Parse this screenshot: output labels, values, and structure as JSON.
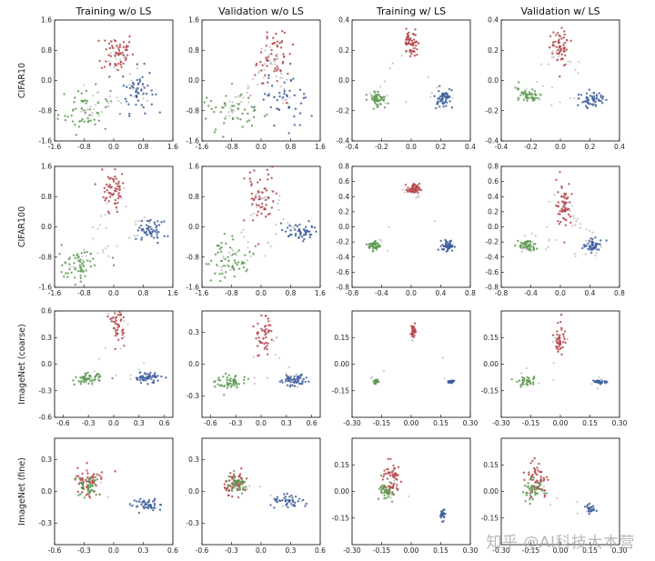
{
  "watermark": "知乎 @AI科技大本营",
  "colors": {
    "class_a": "#b5454a",
    "class_b": "#3c5e9c",
    "class_c": "#5e9a52",
    "noise": "#c9c9c9"
  },
  "chart_data": {
    "type": "scatter",
    "column_titles": [
      "Training w/o LS",
      "Validation w/o LS",
      "Training w/ LS",
      "Validation w/ LS"
    ],
    "row_labels": [
      "CIFAR10",
      "CIFAR100",
      "ImageNet (coarse)",
      "ImageNet (fine)"
    ],
    "grid": false,
    "series_colors": [
      "#b5454a",
      "#3c5e9c",
      "#5e9a52"
    ],
    "panels": [
      [
        {
          "xlim": [
            -1.6,
            1.6
          ],
          "ylim": [
            -1.6,
            1.6
          ],
          "xticks": [
            "-1.6",
            "-0.8",
            "0.0",
            "0.8",
            "1.6"
          ],
          "yticks": [
            "1.6",
            "0.8",
            "0.0",
            "-0.8",
            "-1.6"
          ],
          "clusters": [
            {
              "cx": 0.1,
              "cy": 0.75,
              "sx": 0.22,
              "sy": 0.28,
              "n": 55
            },
            {
              "cx": 0.65,
              "cy": -0.25,
              "sx": 0.22,
              "sy": 0.3,
              "n": 50
            },
            {
              "cx": -0.8,
              "cy": -0.8,
              "sx": 0.35,
              "sy": 0.3,
              "n": 55
            }
          ],
          "noise": 60
        },
        {
          "xlim": [
            -1.6,
            1.6
          ],
          "ylim": [
            -1.6,
            1.6
          ],
          "xticks": [
            "-1.6",
            "-0.8",
            "0.0",
            "0.8",
            "1.6"
          ],
          "yticks": [
            "1.6",
            "0.8",
            "0.0",
            "-0.8",
            "-1.6"
          ],
          "clusters": [
            {
              "cx": 0.25,
              "cy": 0.6,
              "sx": 0.25,
              "sy": 0.45,
              "n": 55
            },
            {
              "cx": 0.7,
              "cy": -0.4,
              "sx": 0.35,
              "sy": 0.35,
              "n": 45
            },
            {
              "cx": -0.8,
              "cy": -0.8,
              "sx": 0.4,
              "sy": 0.3,
              "n": 50
            }
          ],
          "noise": 70
        },
        {
          "xlim": [
            -0.4,
            0.4
          ],
          "ylim": [
            -0.4,
            0.4
          ],
          "xticks": [
            "-0.4",
            "-0.2",
            "0.0",
            "0.2",
            "0.4"
          ],
          "yticks": [
            "0.4",
            "0.2",
            "0.0",
            "-0.2",
            "-0.4"
          ],
          "clusters": [
            {
              "cx": 0.0,
              "cy": 0.24,
              "sx": 0.025,
              "sy": 0.04,
              "n": 60
            },
            {
              "cx": 0.22,
              "cy": -0.12,
              "sx": 0.03,
              "sy": 0.03,
              "n": 55
            },
            {
              "cx": -0.22,
              "cy": -0.12,
              "sx": 0.03,
              "sy": 0.02,
              "n": 55
            }
          ],
          "noise": 25
        },
        {
          "xlim": [
            -0.4,
            0.4
          ],
          "ylim": [
            -0.4,
            0.4
          ],
          "xticks": [
            "-0.4",
            "-0.2",
            "0.0",
            "0.2",
            "0.4"
          ],
          "yticks": [
            "0.4",
            "0.2",
            "0.0",
            "-0.2",
            "-0.4"
          ],
          "clusters": [
            {
              "cx": 0.0,
              "cy": 0.22,
              "sx": 0.03,
              "sy": 0.06,
              "n": 55
            },
            {
              "cx": 0.22,
              "cy": -0.13,
              "sx": 0.04,
              "sy": 0.03,
              "n": 50
            },
            {
              "cx": -0.22,
              "cy": -0.1,
              "sx": 0.04,
              "sy": 0.025,
              "n": 50
            }
          ],
          "noise": 40
        }
      ],
      [
        {
          "xlim": [
            -1.6,
            1.6
          ],
          "ylim": [
            -1.6,
            1.6
          ],
          "xticks": [
            "-1.6",
            "-0.8",
            "0.0",
            "0.8",
            "1.6"
          ],
          "yticks": [
            "1.6",
            "0.8",
            "0.0",
            "-0.8",
            "-1.6"
          ],
          "clusters": [
            {
              "cx": 0.0,
              "cy": 0.9,
              "sx": 0.15,
              "sy": 0.25,
              "n": 60
            },
            {
              "cx": 1.0,
              "cy": -0.1,
              "sx": 0.2,
              "sy": 0.15,
              "n": 55
            },
            {
              "cx": -1.0,
              "cy": -1.0,
              "sx": 0.3,
              "sy": 0.25,
              "n": 60
            }
          ],
          "noise": 40
        },
        {
          "xlim": [
            -1.6,
            1.6
          ],
          "ylim": [
            -1.6,
            1.6
          ],
          "xticks": [
            "-1.6",
            "-0.8",
            "0.0",
            "0.8",
            "1.6"
          ],
          "yticks": [
            "1.6",
            "0.8",
            "0.0",
            "-0.8",
            "-1.6"
          ],
          "clusters": [
            {
              "cx": 0.0,
              "cy": 0.8,
              "sx": 0.2,
              "sy": 0.4,
              "n": 55
            },
            {
              "cx": 1.0,
              "cy": -0.1,
              "sx": 0.25,
              "sy": 0.15,
              "n": 50
            },
            {
              "cx": -1.0,
              "cy": -1.0,
              "sx": 0.35,
              "sy": 0.3,
              "n": 60
            }
          ],
          "noise": 70
        },
        {
          "xlim": [
            -0.8,
            0.8
          ],
          "ylim": [
            -0.8,
            0.8
          ],
          "xticks": [
            "-0.8",
            "-0.4",
            "0.0",
            "0.4",
            "0.8"
          ],
          "yticks": [
            "0.8",
            "0.6",
            "0.4",
            "0.2",
            "0.0",
            "-0.2",
            "-0.4",
            "-0.6",
            "-0.8"
          ],
          "clusters": [
            {
              "cx": 0.03,
              "cy": 0.5,
              "sx": 0.04,
              "sy": 0.035,
              "n": 55
            },
            {
              "cx": 0.5,
              "cy": -0.25,
              "sx": 0.04,
              "sy": 0.035,
              "n": 50
            },
            {
              "cx": -0.5,
              "cy": -0.25,
              "sx": 0.04,
              "sy": 0.03,
              "n": 50
            }
          ],
          "noise": 15
        },
        {
          "xlim": [
            -0.8,
            0.8
          ],
          "ylim": [
            -0.8,
            0.8
          ],
          "xticks": [
            "-0.8",
            "-0.4",
            "0.0",
            "0.4",
            "0.8"
          ],
          "yticks": [
            "0.8",
            "0.6",
            "0.4",
            "0.2",
            "0.0",
            "-0.2",
            "-0.4",
            "-0.6",
            "-0.8"
          ],
          "clusters": [
            {
              "cx": 0.05,
              "cy": 0.3,
              "sx": 0.05,
              "sy": 0.15,
              "n": 55
            },
            {
              "cx": 0.45,
              "cy": -0.25,
              "sx": 0.07,
              "sy": 0.04,
              "n": 50
            },
            {
              "cx": -0.45,
              "cy": -0.25,
              "sx": 0.06,
              "sy": 0.04,
              "n": 50
            }
          ],
          "noise": 50
        }
      ],
      [
        {
          "xlim": [
            -0.7,
            0.7
          ],
          "ylim": [
            -0.6,
            0.6
          ],
          "xticks": [
            "-0.6",
            "-0.3",
            "0.0",
            "0.3",
            "0.6"
          ],
          "yticks": [
            "0.6",
            "0.3",
            "0.0",
            "-0.3",
            "-0.6"
          ],
          "clusters": [
            {
              "cx": 0.05,
              "cy": 0.45,
              "sx": 0.04,
              "sy": 0.1,
              "n": 45
            },
            {
              "cx": 0.4,
              "cy": -0.15,
              "sx": 0.08,
              "sy": 0.03,
              "n": 55
            },
            {
              "cx": -0.3,
              "cy": -0.17,
              "sx": 0.08,
              "sy": 0.03,
              "n": 55
            }
          ],
          "noise": 20
        },
        {
          "xlim": [
            -0.7,
            0.7
          ],
          "ylim": [
            -0.5,
            0.5
          ],
          "xticks": [
            "-0.6",
            "-0.3",
            "0.0",
            "0.3",
            "0.6"
          ],
          "yticks": [
            "0.3",
            "0.0",
            "-0.3"
          ],
          "clusters": [
            {
              "cx": 0.05,
              "cy": 0.3,
              "sx": 0.05,
              "sy": 0.12,
              "n": 50
            },
            {
              "cx": 0.4,
              "cy": -0.15,
              "sx": 0.08,
              "sy": 0.03,
              "n": 55
            },
            {
              "cx": -0.35,
              "cy": -0.17,
              "sx": 0.08,
              "sy": 0.035,
              "n": 55
            }
          ],
          "noise": 25
        },
        {
          "xlim": [
            -0.3,
            0.3
          ],
          "ylim": [
            -0.3,
            0.3
          ],
          "xticks": [
            "-0.30",
            "-0.15",
            "0.00",
            "0.15",
            "0.30"
          ],
          "yticks": [
            "0.15",
            "0.00",
            "-0.15"
          ],
          "clusters": [
            {
              "cx": 0.01,
              "cy": 0.18,
              "sx": 0.006,
              "sy": 0.015,
              "n": 30
            },
            {
              "cx": 0.2,
              "cy": -0.1,
              "sx": 0.008,
              "sy": 0.005,
              "n": 25
            },
            {
              "cx": -0.18,
              "cy": -0.1,
              "sx": 0.008,
              "sy": 0.006,
              "n": 25
            }
          ],
          "noise": 8
        },
        {
          "xlim": [
            -0.3,
            0.3
          ],
          "ylim": [
            -0.3,
            0.3
          ],
          "xticks": [
            "-0.30",
            "-0.15",
            "0.00",
            "0.15",
            "0.30"
          ],
          "yticks": [
            "0.15",
            "0.00",
            "-0.15"
          ],
          "clusters": [
            {
              "cx": 0.0,
              "cy": 0.15,
              "sx": 0.012,
              "sy": 0.05,
              "n": 45
            },
            {
              "cx": 0.2,
              "cy": -0.1,
              "sx": 0.02,
              "sy": 0.006,
              "n": 25
            },
            {
              "cx": -0.17,
              "cy": -0.1,
              "sx": 0.025,
              "sy": 0.012,
              "n": 35
            }
          ],
          "noise": 15
        }
      ],
      [
        {
          "xlim": [
            -0.6,
            0.6
          ],
          "ylim": [
            -0.5,
            0.5
          ],
          "xticks": [
            "-0.6",
            "-0.3",
            "0.0",
            "0.3",
            "0.6"
          ],
          "yticks": [
            "0.3",
            "0.0",
            "-0.3"
          ],
          "clusters": [
            {
              "cx": -0.25,
              "cy": 0.1,
              "sx": 0.07,
              "sy": 0.07,
              "n": 60
            },
            {
              "cx": 0.35,
              "cy": -0.13,
              "sx": 0.08,
              "sy": 0.03,
              "n": 45
            },
            {
              "cx": -0.25,
              "cy": 0.05,
              "sx": 0.06,
              "sy": 0.05,
              "n": 40
            }
          ],
          "noise": 15
        },
        {
          "xlim": [
            -0.6,
            0.6
          ],
          "ylim": [
            -0.5,
            0.5
          ],
          "xticks": [
            "-0.6",
            "-0.3",
            "0.0",
            "0.3",
            "0.6"
          ],
          "yticks": [
            "0.3",
            "0.0",
            "-0.3"
          ],
          "clusters": [
            {
              "cx": -0.25,
              "cy": 0.08,
              "sx": 0.06,
              "sy": 0.05,
              "n": 60
            },
            {
              "cx": 0.3,
              "cy": -0.1,
              "sx": 0.1,
              "sy": 0.03,
              "n": 45
            },
            {
              "cx": -0.25,
              "cy": 0.06,
              "sx": 0.06,
              "sy": 0.04,
              "n": 40
            }
          ],
          "noise": 15
        },
        {
          "xlim": [
            -0.3,
            0.3
          ],
          "ylim": [
            -0.3,
            0.3
          ],
          "xticks": [
            "-0.30",
            "-0.15",
            "0.00",
            "0.15",
            "0.30"
          ],
          "yticks": [
            "0.15",
            "0.00",
            "-0.15"
          ],
          "clusters": [
            {
              "cx": -0.1,
              "cy": 0.07,
              "sx": 0.025,
              "sy": 0.05,
              "n": 55
            },
            {
              "cx": 0.16,
              "cy": -0.13,
              "sx": 0.006,
              "sy": 0.015,
              "n": 25
            },
            {
              "cx": -0.12,
              "cy": 0.0,
              "sx": 0.02,
              "sy": 0.03,
              "n": 40
            }
          ],
          "noise": 10
        },
        {
          "xlim": [
            -0.3,
            0.3
          ],
          "ylim": [
            -0.3,
            0.3
          ],
          "xticks": [
            "-0.30",
            "-0.15",
            "0.00",
            "0.15",
            "0.30"
          ],
          "yticks": [
            "0.15",
            "0.00",
            "-0.15"
          ],
          "clusters": [
            {
              "cx": -0.12,
              "cy": 0.06,
              "sx": 0.03,
              "sy": 0.05,
              "n": 55
            },
            {
              "cx": 0.15,
              "cy": -0.1,
              "sx": 0.015,
              "sy": 0.015,
              "n": 25
            },
            {
              "cx": -0.14,
              "cy": 0.0,
              "sx": 0.025,
              "sy": 0.03,
              "n": 40
            }
          ],
          "noise": 15
        }
      ]
    ]
  }
}
